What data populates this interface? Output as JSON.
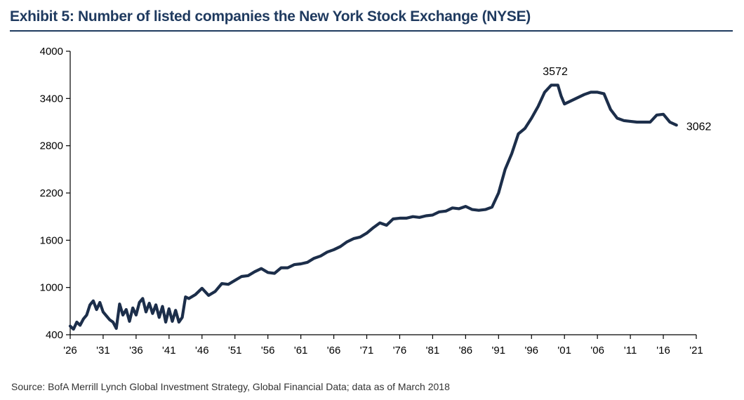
{
  "header": {
    "title": "Exhibit 5: Number of listed companies the New York Stock Exchange (NYSE)"
  },
  "footer": {
    "source": "Source:  BofA Merrill Lynch Global Investment Strategy, Global Financial Data; data as of March 2018"
  },
  "colors": {
    "line": "#1c2e4a",
    "title": "#1f3a5f",
    "axis": "#000000"
  },
  "chart_data": {
    "type": "line",
    "title": "Exhibit 5: Number of listed companies the New York Stock Exchange (NYSE)",
    "xlabel": "",
    "ylabel": "",
    "xlim": [
      1926,
      2021
    ],
    "ylim": [
      400,
      4000
    ],
    "grid": false,
    "x_ticks": [
      1926,
      1931,
      1936,
      1941,
      1946,
      1951,
      1956,
      1961,
      1966,
      1971,
      1976,
      1981,
      1986,
      1991,
      1996,
      2001,
      2006,
      2011,
      2016,
      2021
    ],
    "x_tick_labels": [
      "'26",
      "'31",
      "'36",
      "'41",
      "'46",
      "'51",
      "'56",
      "'61",
      "'66",
      "'71",
      "'76",
      "'81",
      "'86",
      "'91",
      "'96",
      "'01",
      "'06",
      "'11",
      "'16",
      "'21"
    ],
    "y_ticks": [
      400,
      1000,
      1600,
      2200,
      2800,
      3400,
      4000
    ],
    "y_tick_labels": [
      "400",
      "1000",
      "1600",
      "2200",
      "2800",
      "3400",
      "4000"
    ],
    "series": [
      {
        "x": [
          1926,
          1926.5,
          1927,
          1927.5,
          1928,
          1928.5,
          1929,
          1929.5,
          1930,
          1930.5,
          1931,
          1931.5,
          1932,
          1932.5,
          1933,
          1933.5,
          1934,
          1934.5,
          1935,
          1935.5,
          1936,
          1936.5,
          1937,
          1937.5,
          1938,
          1938.5,
          1939,
          1939.5,
          1940,
          1940.5,
          1941,
          1941.5,
          1942,
          1942.5,
          1943,
          1943.5,
          1944,
          1945,
          1946,
          1947,
          1948,
          1949,
          1950,
          1951,
          1952,
          1953,
          1954,
          1955,
          1956,
          1957,
          1958,
          1959,
          1960,
          1961,
          1962,
          1963,
          1964,
          1965,
          1966,
          1967,
          1968,
          1969,
          1970,
          1971,
          1972,
          1973,
          1974,
          1975,
          1976,
          1977,
          1978,
          1979,
          1980,
          1981,
          1982,
          1983,
          1984,
          1985,
          1986,
          1987,
          1988,
          1989,
          1990,
          1991,
          1992,
          1993,
          1994,
          1995,
          1996,
          1997,
          1998,
          1999,
          2000,
          2000.5,
          2001,
          2002,
          2003,
          2004,
          2005,
          2006,
          2007,
          2008,
          2009,
          2010,
          2011,
          2012,
          2013,
          2014,
          2015,
          2016,
          2017,
          2018
        ],
        "values": [
          510,
          470,
          560,
          520,
          600,
          650,
          780,
          830,
          720,
          810,
          690,
          640,
          590,
          560,
          480,
          790,
          650,
          720,
          570,
          740,
          650,
          810,
          860,
          690,
          800,
          670,
          780,
          620,
          760,
          560,
          730,
          570,
          710,
          560,
          620,
          880,
          860,
          910,
          990,
          900,
          950,
          1050,
          1040,
          1090,
          1140,
          1150,
          1200,
          1240,
          1190,
          1180,
          1250,
          1250,
          1290,
          1300,
          1320,
          1370,
          1400,
          1450,
          1480,
          1520,
          1580,
          1620,
          1640,
          1690,
          1760,
          1820,
          1790,
          1870,
          1880,
          1880,
          1900,
          1890,
          1910,
          1920,
          1960,
          1970,
          2010,
          2000,
          2030,
          1990,
          1980,
          1990,
          2020,
          2200,
          2500,
          2700,
          2950,
          3020,
          3150,
          3300,
          3480,
          3570,
          3570,
          3430,
          3330,
          3370,
          3410,
          3450,
          3480,
          3480,
          3460,
          3260,
          3150,
          3120,
          3110,
          3100,
          3100,
          3100,
          3190,
          3200,
          3100,
          3062
        ]
      }
    ],
    "annotations": [
      {
        "text": "3572",
        "x": 1999.6,
        "y": 3572
      },
      {
        "text": "3062",
        "x": 2018,
        "y": 3062
      }
    ]
  }
}
